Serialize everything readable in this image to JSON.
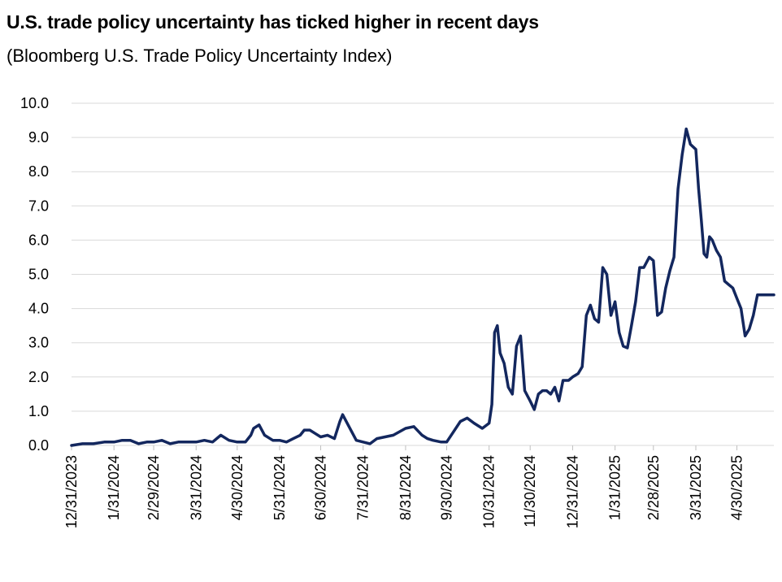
{
  "header": {
    "title": "U.S. trade policy uncertainty has ticked higher in recent days",
    "subtitle": "(Bloomberg U.S. Trade Policy Uncertainty Index)"
  },
  "colors": {
    "line": "#13275e",
    "grid": "#d9d9d9"
  },
  "chart_data": {
    "type": "line",
    "title": "U.S. trade policy uncertainty has ticked higher in recent days",
    "subtitle": "(Bloomberg U.S. Trade Policy Uncertainty Index)",
    "xlabel": "",
    "ylabel": "",
    "ylim": [
      0,
      10
    ],
    "yticks": [
      "0.0",
      "1.0",
      "2.0",
      "3.0",
      "4.0",
      "5.0",
      "6.0",
      "7.0",
      "8.0",
      "9.0",
      "10.0"
    ],
    "xticks": [
      "12/31/2023",
      "1/31/2024",
      "2/29/2024",
      "3/31/2024",
      "4/30/2024",
      "5/31/2024",
      "6/30/2024",
      "7/31/2024",
      "8/31/2024",
      "9/30/2024",
      "10/31/2024",
      "11/30/2024",
      "12/31/2024",
      "1/31/2025",
      "2/28/2025",
      "3/31/2025",
      "4/30/2025"
    ],
    "grid": "horizontal",
    "series": [
      {
        "x": [
          "2023-12-31",
          "2024-01-08",
          "2024-01-16",
          "2024-01-24",
          "2024-01-31",
          "2024-02-06",
          "2024-02-12",
          "2024-02-18",
          "2024-02-24",
          "2024-02-29",
          "2024-03-06",
          "2024-03-12",
          "2024-03-18",
          "2024-03-24",
          "2024-03-31",
          "2024-04-06",
          "2024-04-12",
          "2024-04-18",
          "2024-04-24",
          "2024-04-30",
          "2024-05-06",
          "2024-05-10",
          "2024-05-12",
          "2024-05-16",
          "2024-05-20",
          "2024-05-26",
          "2024-05-31",
          "2024-06-05",
          "2024-06-10",
          "2024-06-15",
          "2024-06-18",
          "2024-06-22",
          "2024-06-26",
          "2024-06-30",
          "2024-07-05",
          "2024-07-10",
          "2024-07-14",
          "2024-07-16",
          "2024-07-20",
          "2024-07-26",
          "2024-07-31",
          "2024-08-05",
          "2024-08-10",
          "2024-08-16",
          "2024-08-22",
          "2024-08-31",
          "2024-09-06",
          "2024-09-12",
          "2024-09-16",
          "2024-09-20",
          "2024-09-26",
          "2024-09-30",
          "2024-10-05",
          "2024-10-10",
          "2024-10-15",
          "2024-10-20",
          "2024-10-26",
          "2024-10-31",
          "2024-11-02",
          "2024-11-04",
          "2024-11-06",
          "2024-11-08",
          "2024-11-11",
          "2024-11-14",
          "2024-11-17",
          "2024-11-20",
          "2024-11-23",
          "2024-11-26",
          "2024-11-30",
          "2024-12-03",
          "2024-12-06",
          "2024-12-09",
          "2024-12-12",
          "2024-12-15",
          "2024-12-18",
          "2024-12-21",
          "2024-12-24",
          "2024-12-28",
          "2024-12-31",
          "2025-01-04",
          "2025-01-07",
          "2025-01-10",
          "2025-01-13",
          "2025-01-16",
          "2025-01-19",
          "2025-01-22",
          "2025-01-25",
          "2025-01-28",
          "2025-01-31",
          "2025-02-03",
          "2025-02-06",
          "2025-02-09",
          "2025-02-12",
          "2025-02-15",
          "2025-02-18",
          "2025-02-21",
          "2025-02-25",
          "2025-02-28",
          "2025-03-03",
          "2025-03-06",
          "2025-03-09",
          "2025-03-12",
          "2025-03-15",
          "2025-03-18",
          "2025-03-21",
          "2025-03-24",
          "2025-03-27",
          "2025-03-31",
          "2025-04-02",
          "2025-04-04",
          "2025-04-06",
          "2025-04-08",
          "2025-04-10",
          "2025-04-12",
          "2025-04-15",
          "2025-04-18",
          "2025-04-21",
          "2025-04-24",
          "2025-04-27",
          "2025-04-30",
          "2025-05-03",
          "2025-05-06",
          "2025-05-09",
          "2025-05-12",
          "2025-05-15",
          "2025-05-18",
          "2025-05-21",
          "2025-05-24",
          "2025-05-27"
        ],
        "values": [
          0.0,
          0.05,
          0.05,
          0.1,
          0.1,
          0.15,
          0.15,
          0.05,
          0.1,
          0.1,
          0.15,
          0.05,
          0.1,
          0.1,
          0.1,
          0.15,
          0.1,
          0.3,
          0.15,
          0.1,
          0.1,
          0.3,
          0.5,
          0.6,
          0.3,
          0.15,
          0.15,
          0.1,
          0.2,
          0.3,
          0.45,
          0.45,
          0.35,
          0.25,
          0.3,
          0.2,
          0.7,
          0.9,
          0.6,
          0.15,
          0.1,
          0.05,
          0.2,
          0.25,
          0.3,
          0.5,
          0.55,
          0.3,
          0.2,
          0.15,
          0.1,
          0.1,
          0.4,
          0.7,
          0.8,
          0.65,
          0.5,
          0.65,
          1.2,
          3.3,
          3.5,
          2.7,
          2.4,
          1.7,
          1.5,
          2.9,
          3.2,
          1.6,
          1.3,
          1.05,
          1.5,
          1.6,
          1.6,
          1.5,
          1.7,
          1.3,
          1.9,
          1.9,
          2.0,
          2.1,
          2.3,
          3.8,
          4.1,
          3.7,
          3.6,
          5.2,
          5.0,
          3.8,
          4.2,
          3.3,
          2.9,
          2.85,
          3.5,
          4.2,
          5.2,
          5.2,
          5.5,
          5.4,
          3.8,
          3.9,
          4.6,
          5.1,
          5.5,
          7.5,
          8.5,
          9.25,
          8.8,
          8.65,
          7.5,
          6.6,
          5.6,
          5.5,
          6.1,
          6.0,
          5.7,
          5.5,
          4.8,
          4.7,
          4.6,
          4.3,
          4.0,
          3.2,
          3.4,
          3.8,
          4.4,
          4.4,
          4.4,
          4.4,
          4.4
        ]
      }
    ]
  }
}
